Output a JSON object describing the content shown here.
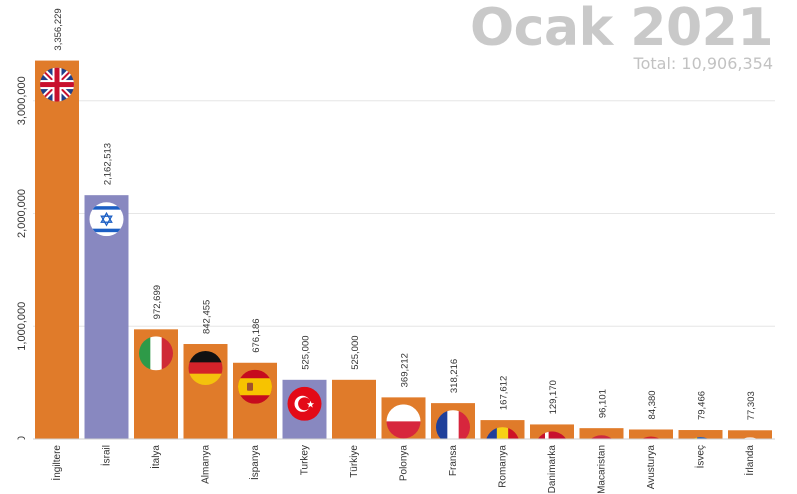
{
  "chart_data": {
    "type": "bar",
    "title": "Ocak 2021",
    "subtitle": "Total: 10,906,354",
    "xlabel": "",
    "ylabel": "",
    "ylim": [
      0,
      3450000
    ],
    "yticks": [
      0,
      1000000,
      2000000,
      3000000
    ],
    "ytick_labels": [
      "0",
      "1,000,000",
      "2,000,000",
      "3,000,000"
    ],
    "grid": true,
    "categories": [
      "İngiltere",
      "İsrail",
      "İtalya",
      "Almanya",
      "İspanya",
      "Turkey",
      "Türkiye",
      "Polonya",
      "Fransa",
      "Romanya",
      "Danimarka",
      "Macaristan",
      "Avusturya",
      "İsveç",
      "İrlanda"
    ],
    "values": [
      3356229,
      2162513,
      972699,
      842455,
      676186,
      525000,
      525000,
      369212,
      318216,
      167612,
      129170,
      96101,
      84380,
      79466,
      77303
    ],
    "value_labels": [
      "3,356,229",
      "2,162,513",
      "972,699",
      "842,455",
      "676,186",
      "525,000",
      "525,000",
      "369,212",
      "318,216",
      "167,612",
      "129,170",
      "96,101",
      "84,380",
      "79,466",
      "77,303"
    ],
    "bar_colors": [
      "#e07b2a",
      "#8888c0",
      "#e07b2a",
      "#e07b2a",
      "#e07b2a",
      "#8888c0",
      "#e07b2a",
      "#e07b2a",
      "#e07b2a",
      "#e07b2a",
      "#e07b2a",
      "#e07b2a",
      "#e07b2a",
      "#e07b2a",
      "#e07b2a"
    ],
    "flags": [
      "uk-flag-icon",
      "israel-flag-icon",
      "italy-flag-icon",
      "germany-flag-icon",
      "spain-flag-icon",
      "turkey-flag-icon",
      "",
      "poland-flag-icon",
      "france-flag-icon",
      "romania-flag-icon",
      "denmark-flag-icon",
      "hungary-flag-icon",
      "austria-flag-icon",
      "sweden-flag-icon",
      "ireland-flag-icon"
    ]
  }
}
